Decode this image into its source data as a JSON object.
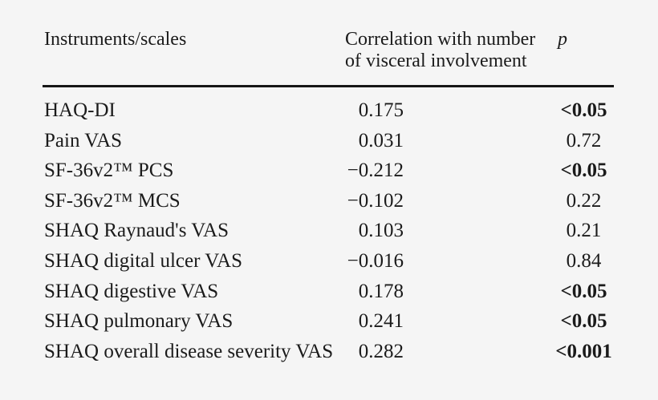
{
  "colors": {
    "background": "#f5f5f5",
    "text": "#1b1b1b",
    "rule": "#161616"
  },
  "table": {
    "columns": {
      "instruments": "Instruments/scales",
      "correlation": "Correlation with number of visceral involvement",
      "p": "p"
    },
    "rows": [
      {
        "instrument": "HAQ-DI",
        "correlation": "0.175",
        "p": "<0.05",
        "p_bold": true
      },
      {
        "instrument": "Pain VAS",
        "correlation": "0.031",
        "p": "0.72",
        "p_bold": false
      },
      {
        "instrument": "SF-36v2™ PCS",
        "correlation": "−0.212",
        "p": "<0.05",
        "p_bold": true
      },
      {
        "instrument": "SF-36v2™ MCS",
        "correlation": "−0.102",
        "p": "0.22",
        "p_bold": false
      },
      {
        "instrument": "SHAQ Raynaud's VAS",
        "correlation": "0.103",
        "p": "0.21",
        "p_bold": false
      },
      {
        "instrument": "SHAQ digital ulcer VAS",
        "correlation": "−0.016",
        "p": "0.84",
        "p_bold": false
      },
      {
        "instrument": "SHAQ digestive VAS",
        "correlation": "0.178",
        "p": "<0.05",
        "p_bold": true
      },
      {
        "instrument": "SHAQ pulmonary VAS",
        "correlation": "0.241",
        "p": "<0.05",
        "p_bold": true
      },
      {
        "instrument": "SHAQ overall disease severity VAS",
        "correlation": "0.282",
        "p": "<0.001",
        "p_bold": true
      }
    ]
  },
  "chart_data": {
    "type": "table",
    "title": "",
    "columns": [
      "Instruments/scales",
      "Correlation with number of visceral involvement",
      "p"
    ],
    "rows": [
      [
        "HAQ-DI",
        "0.175",
        "<0.05"
      ],
      [
        "Pain VAS",
        "0.031",
        "0.72"
      ],
      [
        "SF-36v2™ PCS",
        "−0.212",
        "<0.05"
      ],
      [
        "SF-36v2™ MCS",
        "−0.102",
        "0.22"
      ],
      [
        "SHAQ Raynaud's VAS",
        "0.103",
        "0.21"
      ],
      [
        "SHAQ digital ulcer VAS",
        "−0.016",
        "0.84"
      ],
      [
        "SHAQ digestive VAS",
        "0.178",
        "<0.05"
      ],
      [
        "SHAQ pulmonary VAS",
        "0.241",
        "<0.05"
      ],
      [
        "SHAQ overall disease severity VAS",
        "0.282",
        "<0.001"
      ]
    ]
  }
}
